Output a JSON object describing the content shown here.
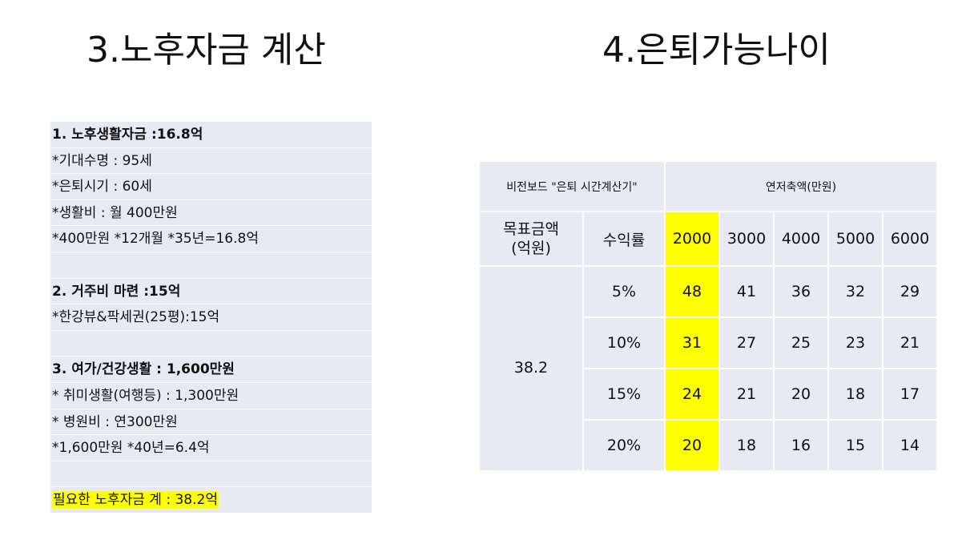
{
  "left_title": "3.노후자금  계산",
  "right_title": "4.은퇴가능나이",
  "list": [
    {
      "text": "1. 노후생활자금 :16.8억",
      "bold": true
    },
    {
      "text": "*기대수명 : 95세"
    },
    {
      "text": "*은퇴시기 : 60세"
    },
    {
      "text": "*생활비 :  월 400만원"
    },
    {
      "text": "*400만원 *12개월 *35년=16.8억"
    },
    {
      "text": ""
    },
    {
      "text": "2. 거주비 마련 :15억",
      "bold": true
    },
    {
      "text": "*한강뷰&팍세권(25평):15억"
    },
    {
      "text": ""
    },
    {
      "text": "3. 여가/건강생활 : 1,600만원",
      "bold": true
    },
    {
      "text": "* 취미생활(여행등) : 1,300만원"
    },
    {
      "text": "* 병원비 : 연300만원"
    },
    {
      "text": "*1,600만원 *40년=6.4억"
    },
    {
      "text": ""
    },
    {
      "text": "필요한 노후자금 계 : 38.2억",
      "highlight": true
    }
  ],
  "table": {
    "source_label": "비전보드 \"은퇴 시간계산기\"",
    "savings_label": "연저축액(만원)",
    "target_label_line1": "목표금액",
    "target_label_line2": "(억원)",
    "return_label": "수익률",
    "savings": [
      "2000",
      "3000",
      "4000",
      "5000",
      "6000"
    ],
    "target_value": "38.2",
    "rows": [
      {
        "rate": "5%",
        "ages": [
          "48",
          "41",
          "36",
          "32",
          "29"
        ]
      },
      {
        "rate": "10%",
        "ages": [
          "31",
          "27",
          "25",
          "23",
          "21"
        ]
      },
      {
        "rate": "15%",
        "ages": [
          "24",
          "21",
          "20",
          "18",
          "17"
        ]
      },
      {
        "rate": "20%",
        "ages": [
          "20",
          "18",
          "16",
          "15",
          "14"
        ]
      }
    ]
  },
  "highlight_color": "#ffff00"
}
